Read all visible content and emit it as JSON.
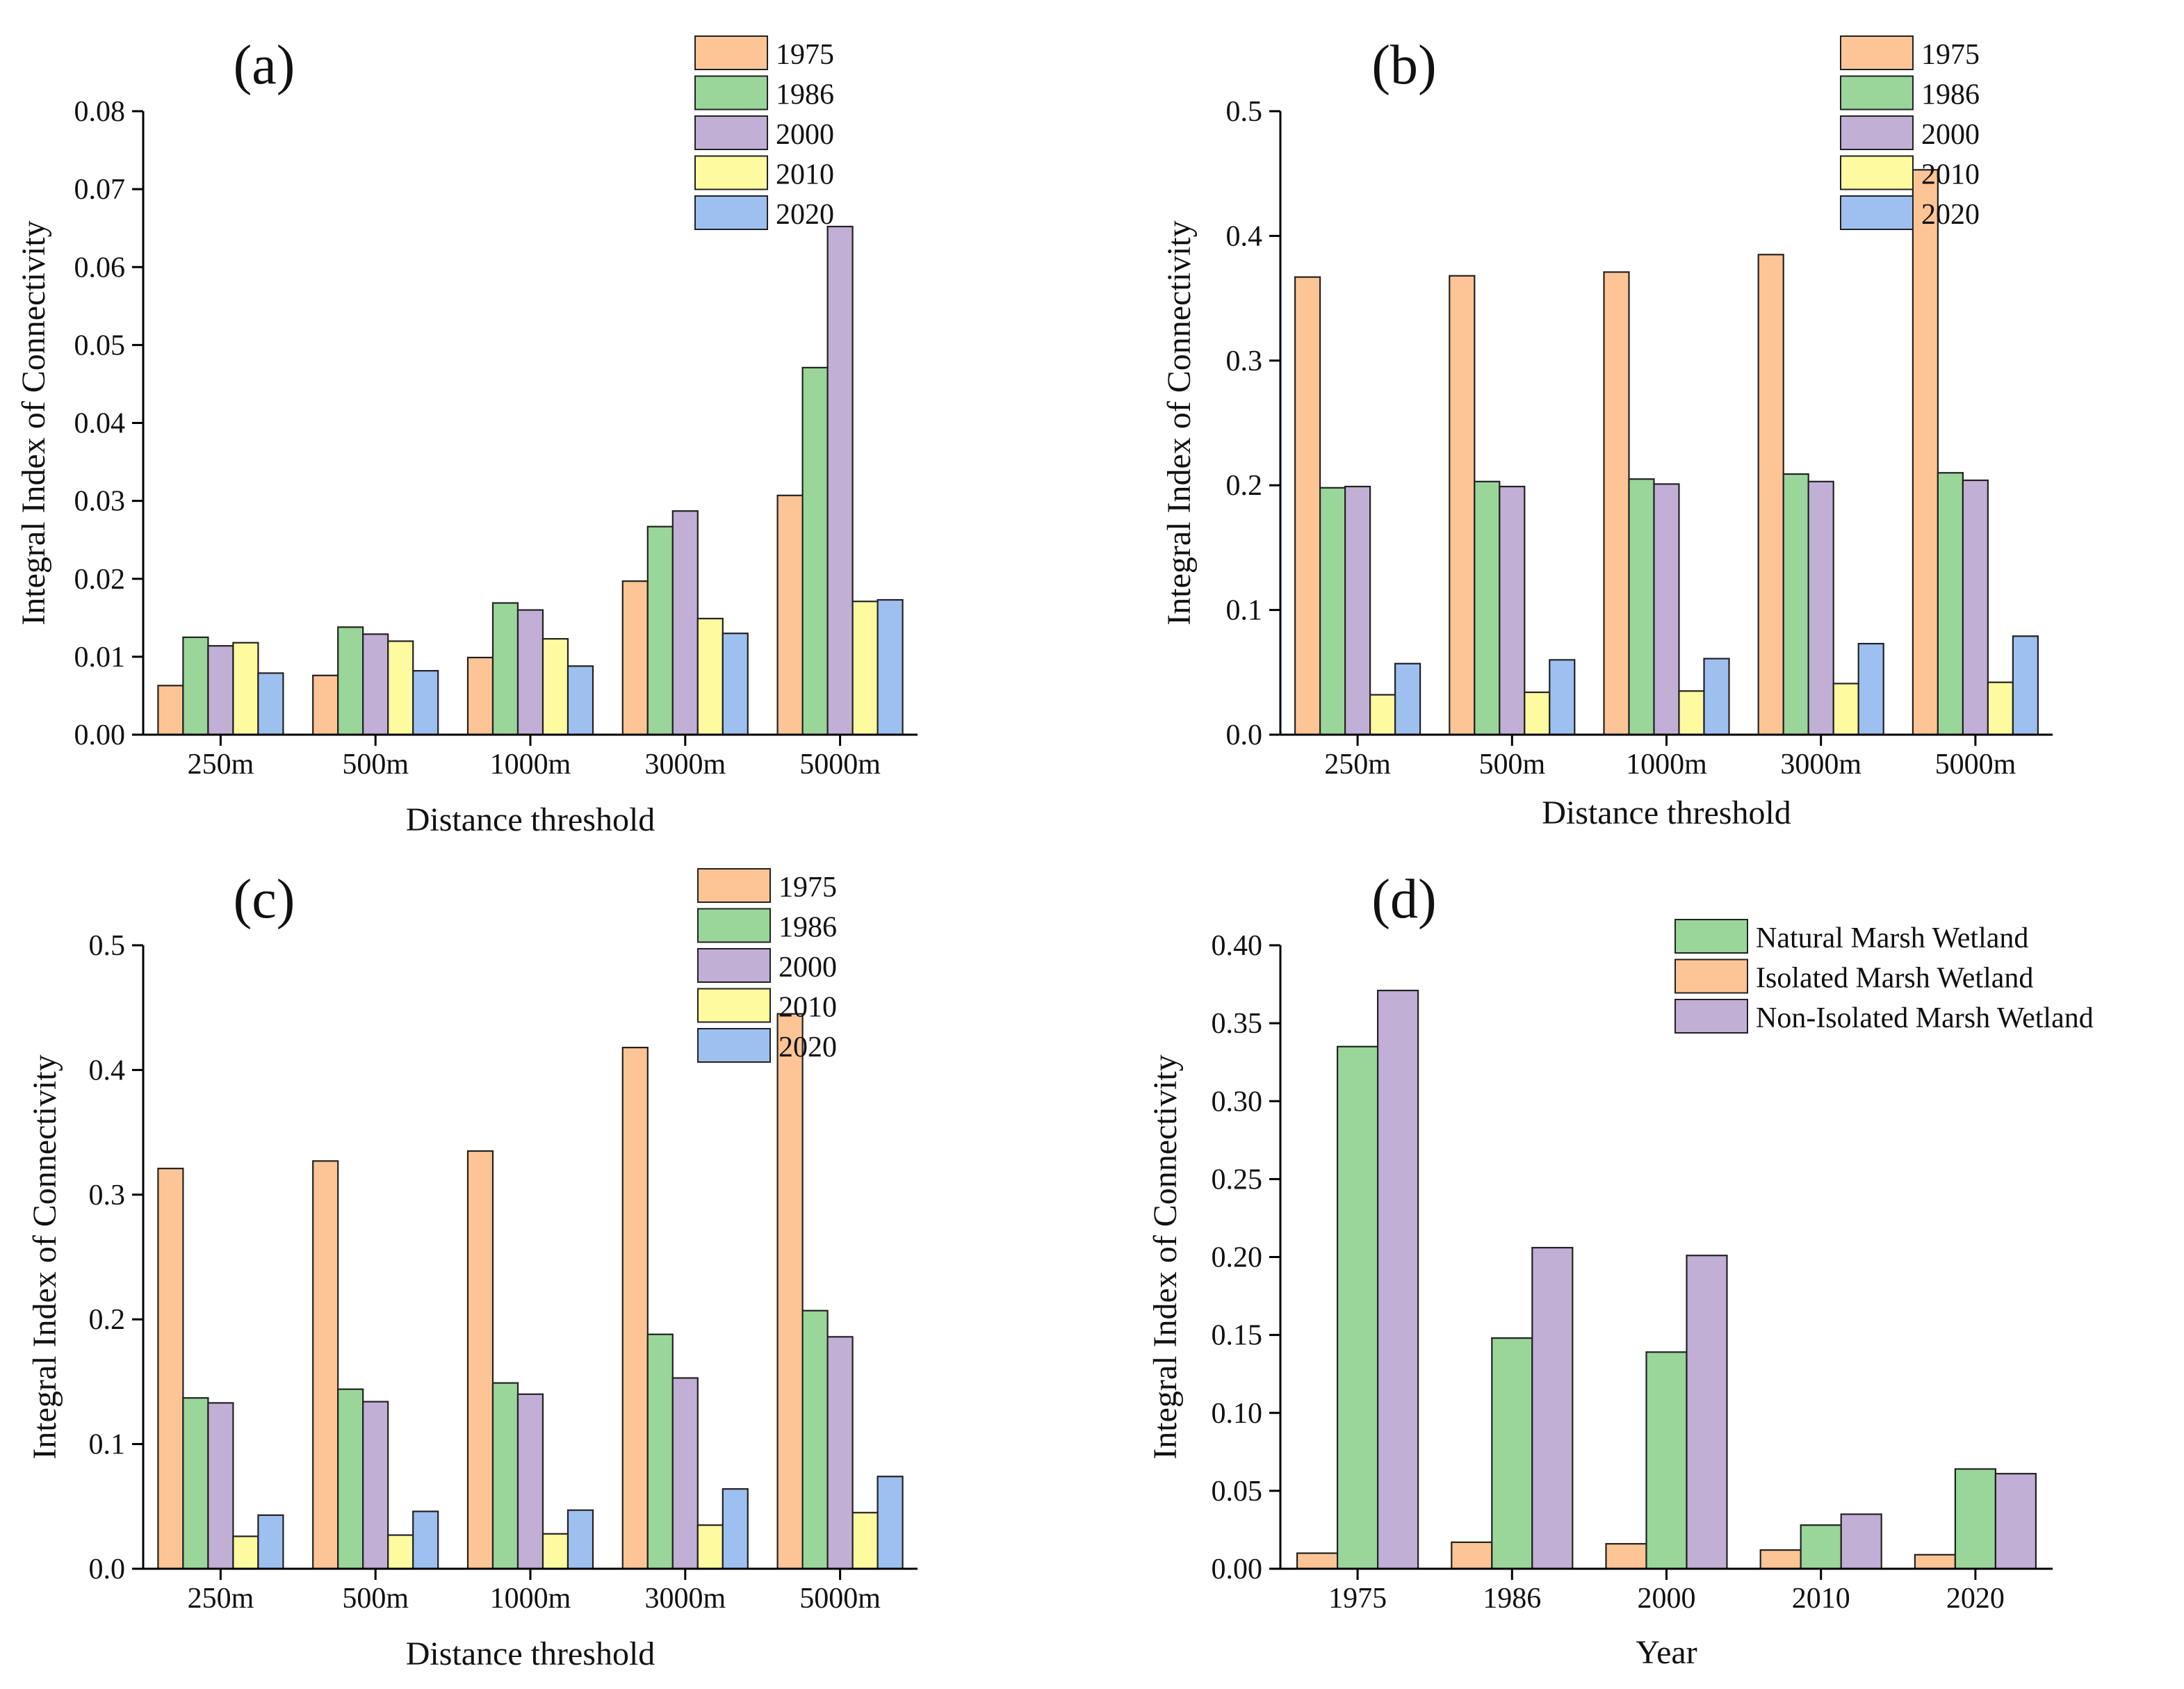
{
  "colors": {
    "1975": "#fdc596",
    "1986": "#9ad69a",
    "2000": "#c1afd6",
    "2010": "#fdfa9f",
    "2020": "#9ec0f0",
    "natural": "#9ad69a",
    "isolated": "#fdc596",
    "nonisolated": "#c1afd6"
  },
  "chart_data": [
    {
      "id": "a",
      "panel_label": "(a)",
      "type": "bar",
      "xlabel": "Distance threshold",
      "ylabel": "Integral Index of Connectivity",
      "categories": [
        "250m",
        "500m",
        "1000m",
        "3000m",
        "5000m"
      ],
      "ylim": [
        0,
        0.08
      ],
      "yticks": [
        "0.00",
        "0.01",
        "0.02",
        "0.03",
        "0.04",
        "0.05",
        "0.06",
        "0.07",
        "0.08"
      ],
      "legend_position": "top-right",
      "series": [
        {
          "name": "1975",
          "color_key": "1975",
          "values": [
            0.0063,
            0.0076,
            0.0099,
            0.0197,
            0.0307
          ]
        },
        {
          "name": "1986",
          "color_key": "1986",
          "values": [
            0.0125,
            0.0138,
            0.0169,
            0.0267,
            0.0471
          ]
        },
        {
          "name": "2000",
          "color_key": "2000",
          "values": [
            0.0114,
            0.0129,
            0.016,
            0.0287,
            0.0652
          ]
        },
        {
          "name": "2010",
          "color_key": "2010",
          "values": [
            0.0118,
            0.012,
            0.0123,
            0.0149,
            0.0171
          ]
        },
        {
          "name": "2020",
          "color_key": "2020",
          "values": [
            0.0079,
            0.0082,
            0.0088,
            0.013,
            0.0173
          ]
        }
      ]
    },
    {
      "id": "b",
      "panel_label": "(b)",
      "type": "bar",
      "xlabel": "Distance threshold",
      "ylabel": "Integral Index of Connectivity",
      "categories": [
        "250m",
        "500m",
        "1000m",
        "3000m",
        "5000m"
      ],
      "ylim": [
        0,
        0.5
      ],
      "yticks": [
        "0.0",
        "0.1",
        "0.2",
        "0.3",
        "0.4",
        "0.5"
      ],
      "legend_position": "top-right",
      "series": [
        {
          "name": "1975",
          "color_key": "1975",
          "values": [
            0.367,
            0.368,
            0.371,
            0.385,
            0.453
          ]
        },
        {
          "name": "1986",
          "color_key": "1986",
          "values": [
            0.198,
            0.203,
            0.205,
            0.209,
            0.21
          ]
        },
        {
          "name": "2000",
          "color_key": "2000",
          "values": [
            0.199,
            0.199,
            0.201,
            0.203,
            0.204
          ]
        },
        {
          "name": "2010",
          "color_key": "2010",
          "values": [
            0.032,
            0.034,
            0.035,
            0.041,
            0.042
          ]
        },
        {
          "name": "2020",
          "color_key": "2020",
          "values": [
            0.057,
            0.06,
            0.061,
            0.073,
            0.079
          ]
        }
      ]
    },
    {
      "id": "c",
      "panel_label": "(c)",
      "type": "bar",
      "xlabel": "Distance threshold",
      "ylabel": "Integral Index of Connectivity",
      "categories": [
        "250m",
        "500m",
        "1000m",
        "3000m",
        "5000m"
      ],
      "ylim": [
        0,
        0.5
      ],
      "yticks": [
        "0.0",
        "0.1",
        "0.2",
        "0.3",
        "0.4",
        "0.5"
      ],
      "legend_position": "top-right",
      "series": [
        {
          "name": "1975",
          "color_key": "1975",
          "values": [
            0.321,
            0.327,
            0.335,
            0.418,
            0.445
          ]
        },
        {
          "name": "1986",
          "color_key": "1986",
          "values": [
            0.137,
            0.144,
            0.149,
            0.188,
            0.207
          ]
        },
        {
          "name": "2000",
          "color_key": "2000",
          "values": [
            0.133,
            0.134,
            0.14,
            0.153,
            0.186
          ]
        },
        {
          "name": "2010",
          "color_key": "2010",
          "values": [
            0.026,
            0.027,
            0.028,
            0.035,
            0.045
          ]
        },
        {
          "name": "2020",
          "color_key": "2020",
          "values": [
            0.043,
            0.046,
            0.047,
            0.064,
            0.074
          ]
        }
      ]
    },
    {
      "id": "d",
      "panel_label": "(d)",
      "type": "bar",
      "xlabel": "Year",
      "ylabel": "Integral Index of Connectivity",
      "categories": [
        "1975",
        "1986",
        "2000",
        "2010",
        "2020"
      ],
      "ylim": [
        0,
        0.4
      ],
      "yticks": [
        "0.00",
        "0.05",
        "0.10",
        "0.15",
        "0.20",
        "0.25",
        "0.30",
        "0.35",
        "0.40"
      ],
      "legend_position": "top-right",
      "series": [
        {
          "name": "Isolated Marsh Wetland",
          "color_key": "isolated",
          "values": [
            0.01,
            0.017,
            0.016,
            0.012,
            0.009
          ]
        },
        {
          "name": "Natural Marsh Wetland",
          "color_key": "natural",
          "values": [
            0.335,
            0.148,
            0.139,
            0.028,
            0.064
          ]
        },
        {
          "name": "Non-Isolated Marsh Wetland",
          "color_key": "nonisolated",
          "values": [
            0.371,
            0.206,
            0.201,
            0.035,
            0.061
          ]
        }
      ],
      "legend_order": [
        "Natural Marsh Wetland",
        "Isolated Marsh Wetland",
        "Non-Isolated Marsh Wetland"
      ]
    }
  ]
}
